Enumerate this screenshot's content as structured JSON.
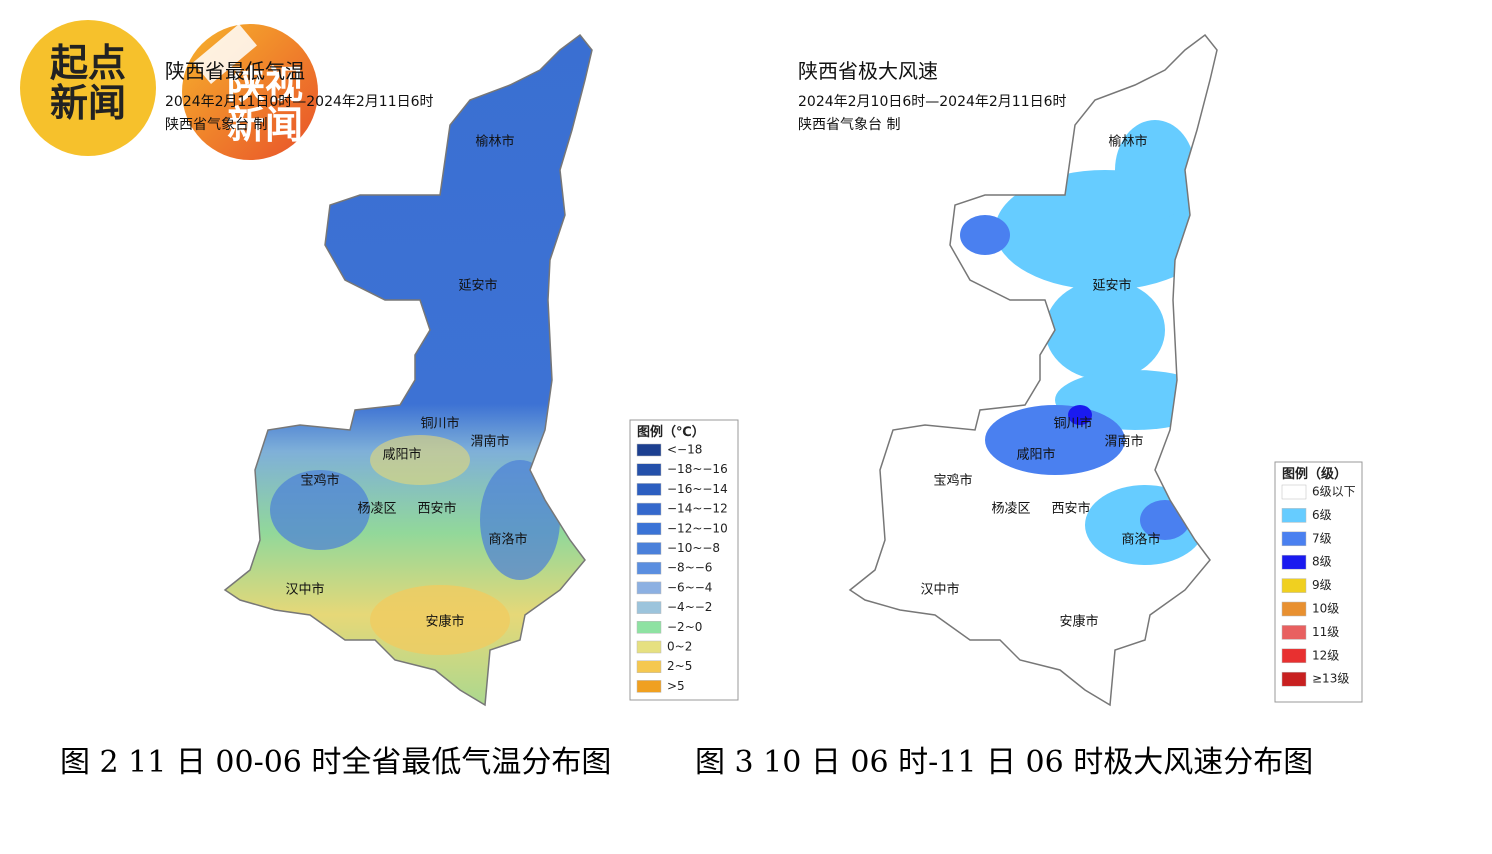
{
  "logos": [
    [
      "起点",
      "新闻"
    ],
    [
      "陕视",
      "新闻"
    ]
  ],
  "maps": [
    {
      "title": "陕西省最低气温",
      "subtitle": "2024年2月11日0时—2024年2月11日6时",
      "issuer": "陕西省气象台 制",
      "legend_title": "图例（℃）",
      "legend": [
        {
          "label": "<−18",
          "color": "#1c3f90"
        },
        {
          "label": "−18~−16",
          "color": "#2450aa"
        },
        {
          "label": "−16~−14",
          "color": "#2c5ec0"
        },
        {
          "label": "−14~−12",
          "color": "#3468cc"
        },
        {
          "label": "−12~−10",
          "color": "#3a73d6"
        },
        {
          "label": "−10~−8",
          "color": "#4a80da"
        },
        {
          "label": "−8~−6",
          "color": "#5a8ee0"
        },
        {
          "label": "−6~−4",
          "color": "#8cb0e2"
        },
        {
          "label": "−4~−2",
          "color": "#9cc4dc"
        },
        {
          "label": "−2~0",
          "color": "#8ee2a2"
        },
        {
          "label": "0~2",
          "color": "#e6e080"
        },
        {
          "label": "2~5",
          "color": "#f5c850"
        },
        {
          "label": ">5",
          "color": "#f0a020"
        }
      ],
      "cities": [
        "榆林市",
        "延安市",
        "铜川市",
        "渭南市",
        "咸阳市",
        "宝鸡市",
        "杨凌区",
        "西安市",
        "商洛市",
        "汉中市",
        "安康市"
      ]
    },
    {
      "title": "陕西省极大风速",
      "subtitle": "2024年2月10日6时—2024年2月11日6时",
      "issuer": "陕西省气象台 制",
      "legend_title": "图例（级）",
      "legend": [
        {
          "label": "6级以下",
          "color": "#ffffff"
        },
        {
          "label": "6级",
          "color": "#66ccff"
        },
        {
          "label": "7级",
          "color": "#4a80f0"
        },
        {
          "label": "8级",
          "color": "#1a1af0"
        },
        {
          "label": "9级",
          "color": "#f0d020"
        },
        {
          "label": "10级",
          "color": "#e89030"
        },
        {
          "label": "11级",
          "color": "#e86060"
        },
        {
          "label": "12级",
          "color": "#e83030"
        },
        {
          "label": "≥13级",
          "color": "#c82020"
        }
      ],
      "cities": [
        "榆林市",
        "延安市",
        "铜川市",
        "渭南市",
        "咸阳市",
        "宝鸡市",
        "杨凌区",
        "西安市",
        "商洛市",
        "汉中市",
        "安康市"
      ]
    }
  ],
  "captions": [
    "图 2 11 日 00-06 时全省最低气温分布图",
    "图 3 10 日 06 时-11 日 06 时极大风速分布图"
  ]
}
